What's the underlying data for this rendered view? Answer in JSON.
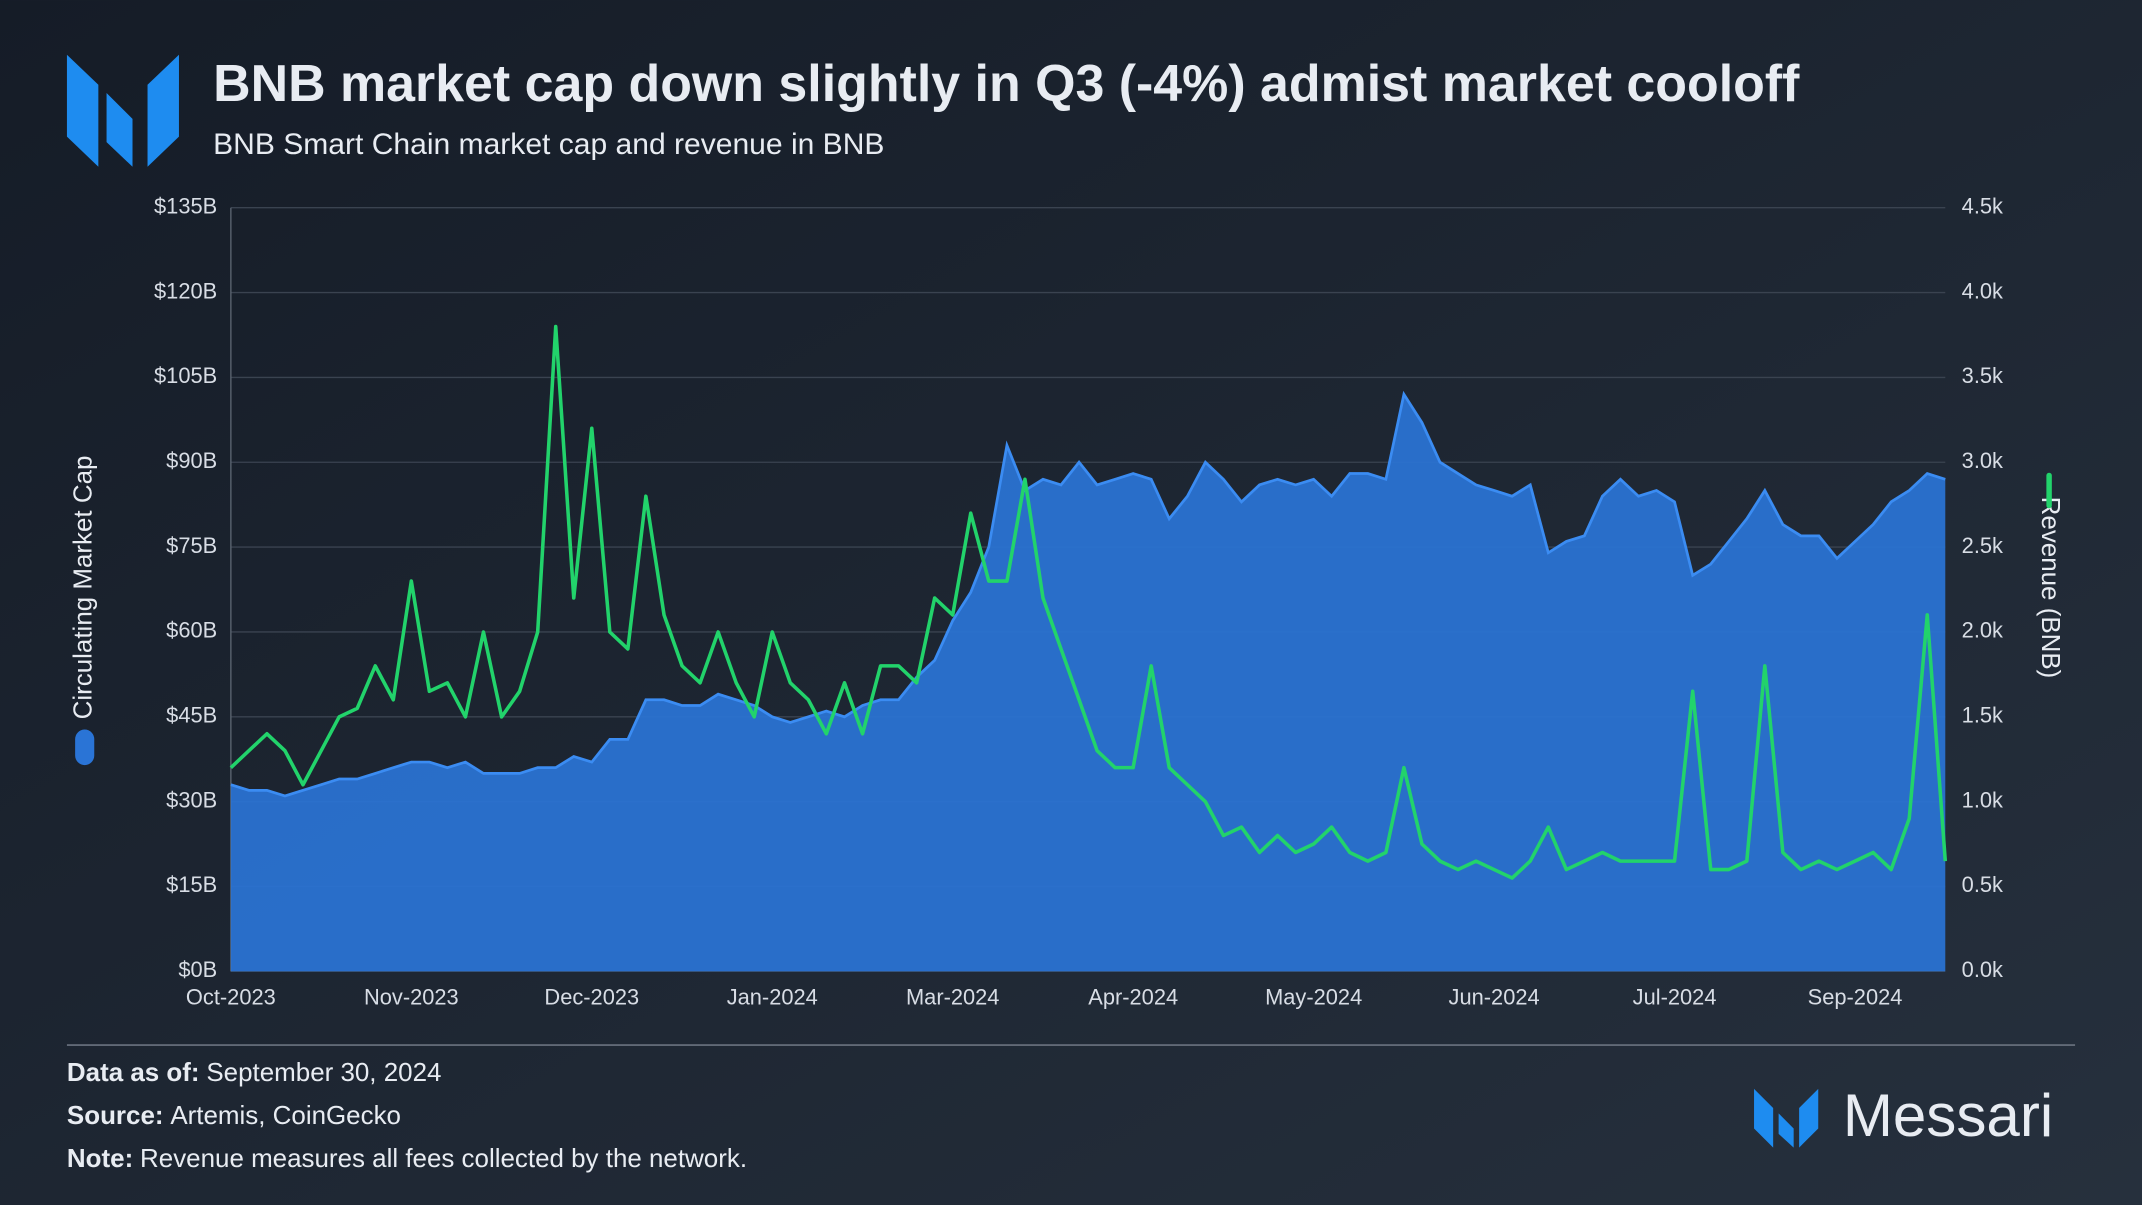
{
  "chart_data": {
    "type": "combo",
    "title": "BNB market cap down slightly in Q3 (-4%) admist market cooloff",
    "subtitle": "BNB Smart Chain market cap and revenue in BNB",
    "categories": [
      "Oct-2023",
      null,
      null,
      null,
      null,
      null,
      null,
      null,
      null,
      null,
      "Nov-2023",
      null,
      null,
      null,
      null,
      null,
      null,
      null,
      null,
      null,
      "Dec-2023",
      null,
      null,
      null,
      null,
      null,
      null,
      null,
      null,
      null,
      "Jan-2024",
      null,
      null,
      null,
      null,
      null,
      null,
      null,
      null,
      null,
      "Mar-2024",
      null,
      null,
      null,
      null,
      null,
      null,
      null,
      null,
      null,
      "Apr-2024",
      null,
      null,
      null,
      null,
      null,
      null,
      null,
      null,
      null,
      "May-2024",
      null,
      null,
      null,
      null,
      null,
      null,
      null,
      null,
      null,
      "Jun-2024",
      null,
      null,
      null,
      null,
      null,
      null,
      null,
      null,
      null,
      "Jul-2024",
      null,
      null,
      null,
      null,
      null,
      null,
      null,
      null,
      null,
      "Sep-2024",
      null,
      null,
      null,
      null,
      null
    ],
    "series": [
      {
        "name": "Circulating Market Cap",
        "type": "area",
        "color": "#2a74d6",
        "values": [
          33,
          32,
          32,
          31,
          32,
          33,
          34,
          34,
          35,
          36,
          37,
          37,
          36,
          37,
          35,
          35,
          35,
          36,
          36,
          38,
          37,
          41,
          41,
          48,
          48,
          47,
          47,
          49,
          48,
          47,
          45,
          44,
          45,
          46,
          45,
          47,
          48,
          48,
          52,
          55,
          62,
          67,
          75,
          93,
          85,
          87,
          86,
          90,
          86,
          87,
          88,
          87,
          80,
          84,
          90,
          87,
          83,
          86,
          87,
          86,
          87,
          84,
          88,
          88,
          87,
          102,
          97,
          90,
          88,
          86,
          85,
          84,
          86,
          74,
          76,
          77,
          84,
          87,
          84,
          85,
          83,
          70,
          72,
          76,
          80,
          85,
          79,
          77,
          77,
          73,
          76,
          79,
          83,
          85,
          88,
          87
        ]
      },
      {
        "name": "Revenue (BNB)",
        "type": "line",
        "color": "#22d36b",
        "axis": "y2",
        "values": [
          1200,
          1300,
          1400,
          1300,
          1100,
          1300,
          1500,
          1550,
          1800,
          1600,
          2300,
          1650,
          1700,
          1500,
          2000,
          1500,
          1650,
          2000,
          3800,
          2200,
          3200,
          2000,
          1900,
          2800,
          2100,
          1800,
          1700,
          2000,
          1700,
          1500,
          2000,
          1700,
          1600,
          1400,
          1700,
          1400,
          1800,
          1800,
          1700,
          2200,
          2100,
          2700,
          2300,
          2300,
          2900,
          2200,
          1900,
          1600,
          1300,
          1200,
          1200,
          1800,
          1200,
          1100,
          1000,
          800,
          850,
          700,
          800,
          700,
          750,
          850,
          700,
          650,
          700,
          1200,
          750,
          650,
          600,
          650,
          600,
          550,
          650,
          850,
          600,
          650,
          700,
          650,
          650,
          650,
          650,
          1650,
          600,
          600,
          650,
          1800,
          700,
          600,
          650,
          600,
          650,
          700,
          600,
          900,
          2100,
          650
        ]
      }
    ],
    "ylim": [
      0,
      135
    ],
    "yticks": [
      {
        "value": 0,
        "label": "$0B"
      },
      {
        "value": 15,
        "label": "$15B"
      },
      {
        "value": 30,
        "label": "$30B"
      },
      {
        "value": 45,
        "label": "$45B"
      },
      {
        "value": 60,
        "label": "$60B"
      },
      {
        "value": 75,
        "label": "$75B"
      },
      {
        "value": 90,
        "label": "$90B"
      },
      {
        "value": 105,
        "label": "$105B"
      },
      {
        "value": 120,
        "label": "$120B"
      },
      {
        "value": 135,
        "label": "$135B"
      }
    ],
    "y2lim": [
      0,
      4500
    ],
    "y2ticks": [
      {
        "value": 0,
        "label": "0.0k"
      },
      {
        "value": 500,
        "label": "0.5k"
      },
      {
        "value": 1000,
        "label": "1.0k"
      },
      {
        "value": 1500,
        "label": "1.5k"
      },
      {
        "value": 2000,
        "label": "2.0k"
      },
      {
        "value": 2500,
        "label": "2.5k"
      },
      {
        "value": 3000,
        "label": "3.0k"
      },
      {
        "value": 3500,
        "label": "3.5k"
      },
      {
        "value": 4000,
        "label": "4.0k"
      },
      {
        "value": 4500,
        "label": "4.5k"
      }
    ],
    "grid": true
  },
  "footer": [
    {
      "label": "Data as of:",
      "text": "September 30, 2024"
    },
    {
      "label": "Source:",
      "text": "Artemis, CoinGecko"
    },
    {
      "label": "Note:",
      "text": "Revenue measures all fees collected by the network."
    }
  ],
  "brand": "Messari"
}
